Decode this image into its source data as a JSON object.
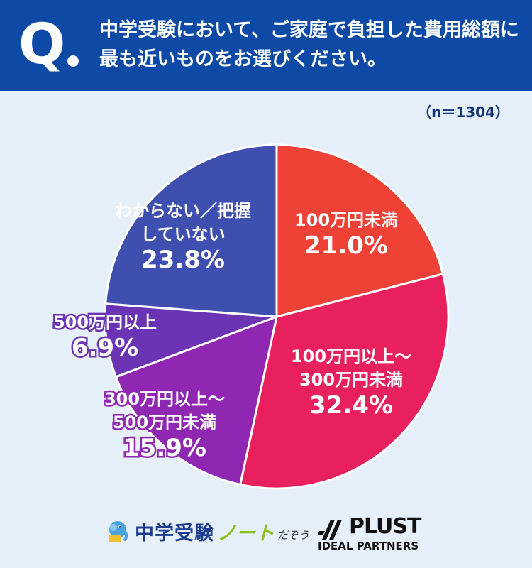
{
  "header": {
    "q_letter": "Q",
    "question_line1": "中学受験において、ご家庭で負担した費用総額に",
    "question_line2": "最も近いものをお選びください。"
  },
  "sample_size": "（n＝1304）",
  "colors": {
    "header_bg": "#0c4aa6",
    "page_bg": "#e6f0fb"
  },
  "chart_data": {
    "type": "pie",
    "start": "12 o'clock",
    "direction": "clockwise",
    "slices": [
      {
        "label_lines": [
          "100万円未満"
        ],
        "value": 21.0,
        "pct_text": "21.0%",
        "color": "#ef4135",
        "label_style": "white"
      },
      {
        "label_lines": [
          "100万円以上～",
          "300万円未満"
        ],
        "value": 32.4,
        "pct_text": "32.4%",
        "color": "#e8215e",
        "label_style": "white"
      },
      {
        "label_lines": [
          "300万円以上～",
          "500万円未満"
        ],
        "value": 15.9,
        "pct_text": "15.9%",
        "color": "#8f27b2",
        "label_style": "outlined"
      },
      {
        "label_lines": [
          "500万円以上"
        ],
        "value": 6.9,
        "pct_text": "6.9%",
        "color": "#6a34b4",
        "label_style": "outlined"
      },
      {
        "label_lines": [
          "わからない／把握",
          "していない"
        ],
        "value": 23.8,
        "pct_text": "23.8%",
        "color": "#3e4fb0",
        "label_style": "white"
      }
    ]
  },
  "footer": {
    "logo1_main": "中学受験",
    "logo1_note": "ノート",
    "logo1_small": "だぞう",
    "logo2_main": "PLUST",
    "logo2_sub": "IDEAL PARTNERS"
  }
}
